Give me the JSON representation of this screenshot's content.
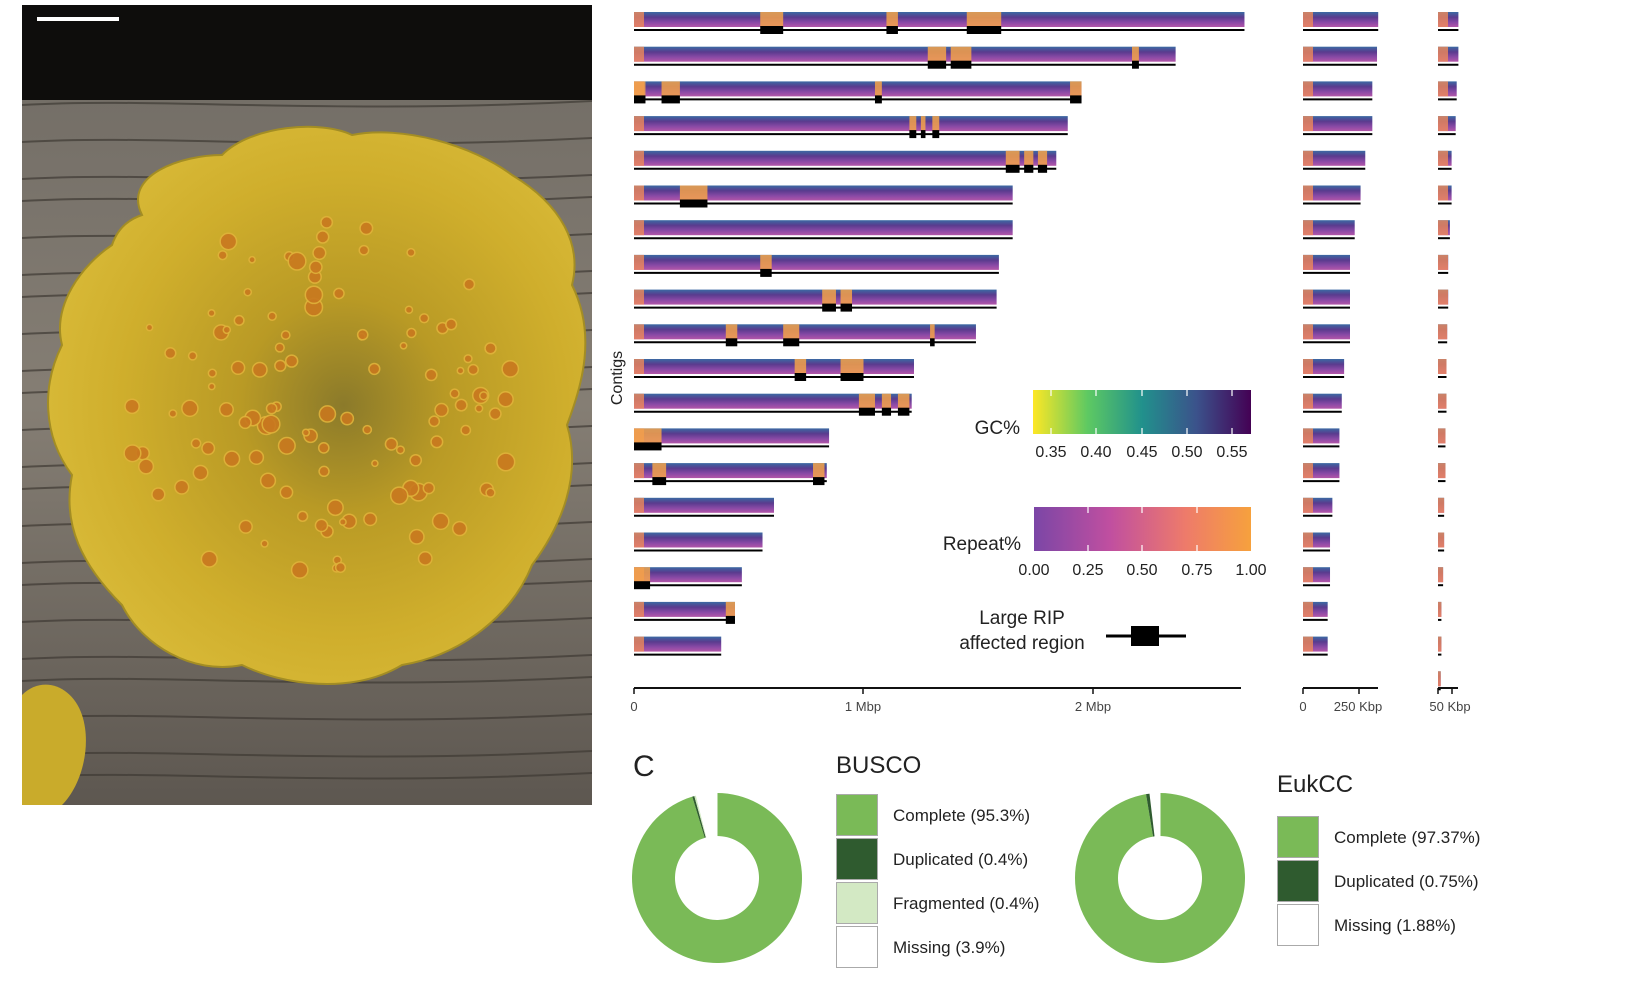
{
  "photo": {
    "alt": ""
  },
  "panel_b": {
    "y_label": "Contigs",
    "gc_legend": {
      "title": "GC%",
      "ticks": [
        "0.35",
        "0.40",
        "0.45",
        "0.50",
        "0.55"
      ]
    },
    "repeat_legend": {
      "title": "Repeat%",
      "ticks": [
        "0.00",
        "0.25",
        "0.50",
        "0.75",
        "1.00"
      ]
    },
    "rip_legend": {
      "line1": "Large RIP",
      "line2": "affected region"
    },
    "axis_main": {
      "ticks": [
        "0",
        "1 Mbp",
        "2 Mbp"
      ]
    },
    "axis_mid": {
      "ticks": [
        "0",
        "250 Kbp"
      ]
    },
    "axis_small": {
      "ticks": [
        "50 Kbp"
      ]
    }
  },
  "panel_c": {
    "letter": "C",
    "busco": {
      "title": "BUSCO",
      "items": [
        {
          "label": "Complete (95.3%)",
          "value": 95.3,
          "color": "#7aba57"
        },
        {
          "label": "Duplicated (0.4%)",
          "value": 0.4,
          "color": "#2f5b2f"
        },
        {
          "label": "Fragmented (0.4%)",
          "value": 0.4,
          "color": "#d3e9c4"
        },
        {
          "label": "Missing (3.9%)",
          "value": 3.9,
          "color": "#ffffff"
        }
      ]
    },
    "eukcc": {
      "title": "EukCC",
      "items": [
        {
          "label": "Complete (97.37%)",
          "value": 97.37,
          "color": "#7aba57"
        },
        {
          "label": "Duplicated (0.75%)",
          "value": 0.75,
          "color": "#2f5b2f"
        },
        {
          "label": "Missing (1.88%)",
          "value": 1.88,
          "color": "#ffffff"
        }
      ]
    }
  },
  "chart_data": [
    {
      "type": "bar",
      "orientation": "horizontal",
      "unit": "Mbp",
      "xlabel": "",
      "ylabel": "Contigs",
      "xlim": [
        0,
        2.65
      ],
      "lengths": [
        2.66,
        2.36,
        1.95,
        1.89,
        1.84,
        1.65,
        1.65,
        1.59,
        1.58,
        1.49,
        1.22,
        1.21,
        0.85,
        0.84,
        0.61,
        0.56,
        0.47,
        0.44,
        0.38
      ],
      "rip_regions": [
        [
          [
            0.55,
            0.65
          ],
          [
            1.1,
            1.15
          ],
          [
            1.45,
            1.6
          ]
        ],
        [
          [
            1.28,
            1.36
          ],
          [
            1.38,
            1.47
          ],
          [
            2.17,
            2.2
          ]
        ],
        [
          [
            0.0,
            0.05
          ],
          [
            0.12,
            0.2
          ],
          [
            1.05,
            1.08
          ],
          [
            1.9,
            1.95
          ]
        ],
        [
          [
            1.2,
            1.23
          ],
          [
            1.25,
            1.27
          ],
          [
            1.3,
            1.33
          ]
        ],
        [
          [
            1.62,
            1.68
          ],
          [
            1.7,
            1.74
          ],
          [
            1.76,
            1.8
          ]
        ],
        [
          [
            0.2,
            0.32
          ]
        ],
        [],
        [
          [
            0.55,
            0.6
          ]
        ],
        [
          [
            0.82,
            0.88
          ],
          [
            0.9,
            0.95
          ]
        ],
        [
          [
            0.4,
            0.45
          ],
          [
            0.65,
            0.72
          ],
          [
            1.29,
            1.31
          ]
        ],
        [
          [
            0.7,
            0.75
          ],
          [
            0.9,
            1.0
          ]
        ],
        [
          [
            0.98,
            1.05
          ],
          [
            1.08,
            1.12
          ],
          [
            1.15,
            1.2
          ]
        ],
        [
          [
            0.0,
            0.12
          ]
        ],
        [
          [
            0.08,
            0.14
          ],
          [
            0.78,
            0.83
          ]
        ],
        [],
        [],
        [
          [
            0.0,
            0.07
          ]
        ],
        [
          [
            0.4,
            0.44
          ]
        ],
        []
      ]
    },
    {
      "type": "bar",
      "orientation": "horizontal",
      "unit": "Kbp",
      "xlim": [
        0,
        320
      ],
      "lengths": [
        320,
        315,
        295,
        295,
        265,
        245,
        220,
        200,
        200,
        200,
        175,
        165,
        155,
        155,
        125,
        115,
        115,
        105,
        105
      ]
    },
    {
      "type": "bar",
      "orientation": "horizontal",
      "unit": "Kbp",
      "xlim": [
        0,
        60
      ],
      "lengths": [
        60,
        60,
        55,
        52,
        40,
        40,
        35,
        30,
        30,
        27,
        25,
        25,
        22,
        22,
        18,
        18,
        15,
        10,
        10,
        8
      ]
    },
    {
      "type": "pie",
      "title": "BUSCO",
      "labels": [
        "Complete",
        "Duplicated",
        "Fragmented",
        "Missing"
      ],
      "values": [
        95.3,
        0.4,
        0.4,
        3.9
      ]
    },
    {
      "type": "pie",
      "title": "EukCC",
      "labels": [
        "Complete",
        "Duplicated",
        "Missing"
      ],
      "values": [
        97.37,
        0.75,
        1.88
      ]
    }
  ]
}
